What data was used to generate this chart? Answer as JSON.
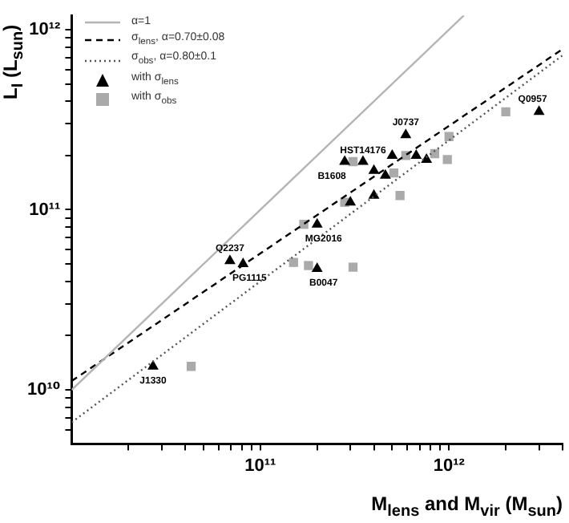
{
  "chart_data": {
    "type": "scatter",
    "xlabel": "M$_{lens}$ and M$_{vir}$ (M$_{sun}$)",
    "ylabel": "L$_{I}$ (L$_{sun}$)",
    "log": "xy",
    "grid": false,
    "legend": "top left",
    "xlim": [
      10000000000.0,
      4000000000000.0
    ],
    "ylim": [
      5000000000.0,
      1200000000000.0
    ],
    "xticks": [
      {
        "value": 20000000000.0,
        "label": null
      },
      {
        "value": 30000000000.0,
        "label": null
      },
      {
        "value": 40000000000.0,
        "label": null
      },
      {
        "value": 50000000000.0,
        "label": null
      },
      {
        "value": 60000000000.0,
        "label": null
      },
      {
        "value": 70000000000.0,
        "label": null
      },
      {
        "value": 80000000000.0,
        "label": null
      },
      {
        "value": 90000000000.0,
        "label": null
      },
      {
        "value": 100000000000.0,
        "label": "10¹¹"
      },
      {
        "value": 200000000000.0,
        "label": null
      },
      {
        "value": 300000000000.0,
        "label": null
      },
      {
        "value": 400000000000.0,
        "label": null
      },
      {
        "value": 500000000000.0,
        "label": null
      },
      {
        "value": 600000000000.0,
        "label": null
      },
      {
        "value": 700000000000.0,
        "label": null
      },
      {
        "value": 800000000000.0,
        "label": null
      },
      {
        "value": 900000000000.0,
        "label": null
      },
      {
        "value": 1000000000000.0,
        "label": "10¹²"
      },
      {
        "value": 2000000000000.0,
        "label": null
      },
      {
        "value": 3000000000000.0,
        "label": null
      },
      {
        "value": 4000000000000.0,
        "label": null
      }
    ],
    "yticks": [
      {
        "value": 6000000000.0,
        "label": null
      },
      {
        "value": 7000000000.0,
        "label": null
      },
      {
        "value": 8000000000.0,
        "label": null
      },
      {
        "value": 9000000000.0,
        "label": null
      },
      {
        "value": 10000000000.0,
        "label": "10¹⁰"
      },
      {
        "value": 20000000000.0,
        "label": null
      },
      {
        "value": 30000000000.0,
        "label": null
      },
      {
        "value": 40000000000.0,
        "label": null
      },
      {
        "value": 50000000000.0,
        "label": null
      },
      {
        "value": 60000000000.0,
        "label": null
      },
      {
        "value": 70000000000.0,
        "label": null
      },
      {
        "value": 80000000000.0,
        "label": null
      },
      {
        "value": 90000000000.0,
        "label": null
      },
      {
        "value": 100000000000.0,
        "label": "10¹¹"
      },
      {
        "value": 200000000000.0,
        "label": null
      },
      {
        "value": 300000000000.0,
        "label": null
      },
      {
        "value": 400000000000.0,
        "label": null
      },
      {
        "value": 500000000000.0,
        "label": null
      },
      {
        "value": 600000000000.0,
        "label": null
      },
      {
        "value": 700000000000.0,
        "label": null
      },
      {
        "value": 800000000000.0,
        "label": null
      },
      {
        "value": 900000000000.0,
        "label": null
      },
      {
        "value": 1000000000000.0,
        "label": "10¹²"
      }
    ],
    "series": [
      {
        "name": "α=1",
        "type": "line",
        "color": "#b4b4b4",
        "line_style": "solid",
        "marker": "none",
        "x": [
          10000000000.0,
          1200000000000.0
        ],
        "values": [
          10000000000.0,
          1200000000000.0
        ]
      },
      {
        "name": "σ$_{lens}$, α=0.70±0.08",
        "type": "line",
        "color": "#000000",
        "line_style": "dashed",
        "marker": "none",
        "x": [
          10000000000.0,
          4000000000000.0
        ],
        "values": [
          11200000000.0,
          780000000000.0
        ]
      },
      {
        "name": "σ$_{obs}$, α=0.80±0.1",
        "type": "line",
        "color": "#555555",
        "line_style": "dotted",
        "marker": "none",
        "x": [
          10000000000.0,
          4000000000000.0
        ],
        "values": [
          6600000000.0,
          720000000000.0
        ]
      },
      {
        "name": "with σ$_{lens}$",
        "color": "#000000",
        "marker": "triangle",
        "x": [
          27000000000.0,
          69000000000.0,
          81000000000.0,
          200000000000.0,
          200000000000.0,
          300000000000.0,
          400000000000.0,
          280000000000.0,
          350000000000.0,
          400000000000.0,
          460000000000.0,
          500000000000.0,
          590000000000.0,
          670000000000.0,
          760000000000.0,
          3000000000000.0
        ],
        "values": [
          13500000000.0,
          52000000000.0,
          50000000000.0,
          83000000000.0,
          47000000000.0,
          110000000000.0,
          120000000000.0,
          185000000000.0,
          185000000000.0,
          165000000000.0,
          155000000000.0,
          200000000000.0,
          260000000000.0,
          200000000000.0,
          190000000000.0,
          350000000000.0
        ]
      },
      {
        "name": "with σ$_{obs}$",
        "color": "#aaaaaa",
        "marker": "square",
        "x": [
          43000000000.0,
          170000000000.0,
          150000000000.0,
          180000000000.0,
          310000000000.0,
          280000000000.0,
          310000000000.0,
          510000000000.0,
          590000000000.0,
          550000000000.0,
          840000000000.0,
          980000000000.0,
          1000000000000.0,
          2000000000000.0
        ],
        "values": [
          13500000000.0,
          83000000000.0,
          51000000000.0,
          49000000000.0,
          48000000000.0,
          110000000000.0,
          185000000000.0,
          160000000000.0,
          200000000000.0,
          120000000000.0,
          205000000000.0,
          190000000000.0,
          255000000000.0,
          350000000000.0
        ]
      }
    ],
    "annotations": [
      {
        "text": "J1330",
        "x": 27000000000.0,
        "y": 13500000000.0
      },
      {
        "text": "Q2237",
        "x": 69000000000.0,
        "y": 52000000000.0
      },
      {
        "text": "PG1115",
        "x": 81000000000.0,
        "y": 50000000000.0
      },
      {
        "text": "MG2016",
        "x": 200000000000.0,
        "y": 83000000000.0
      },
      {
        "text": "B0047",
        "x": 200000000000.0,
        "y": 47000000000.0
      },
      {
        "text": "B1608",
        "x": 280000000000.0,
        "y": 185000000000.0
      },
      {
        "text": "HST14176",
        "x": 350000000000.0,
        "y": 185000000000.0
      },
      {
        "text": "J0737",
        "x": 590000000000.0,
        "y": 260000000000.0
      },
      {
        "text": "Q0957",
        "x": 3000000000000.0,
        "y": 350000000000.0
      }
    ]
  }
}
